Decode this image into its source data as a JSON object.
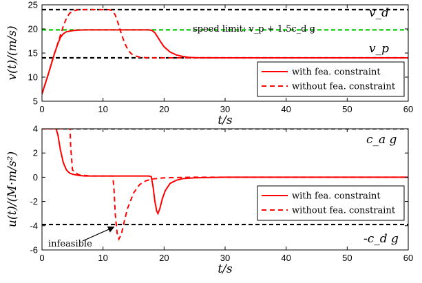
{
  "chart_data": [
    {
      "type": "line",
      "xlabel": "t/s",
      "ylabel": "v(t)/(m/s)",
      "xlim": [
        0,
        60
      ],
      "ylim": [
        5,
        25
      ],
      "xticks": [
        "0",
        "10",
        "20",
        "30",
        "40",
        "50",
        "60"
      ],
      "yticks": [
        "5",
        "10",
        "15",
        "20",
        "25"
      ],
      "grid": false,
      "legend_position": "right",
      "legend": [
        "with fea. constraint",
        "without fea. constraint"
      ],
      "reference_lines": [
        {
          "y": 24,
          "label": "v_d",
          "style": "dashed",
          "color": "#000000"
        },
        {
          "y": 19.8,
          "label": "speed limit: v_p + 1.5c_d g",
          "style": "dashed",
          "color": "#00cc00"
        },
        {
          "y": 14,
          "label": "v_p",
          "style": "dashed",
          "color": "#000000"
        }
      ],
      "series": [
        {
          "name": "with fea. constraint",
          "style": "solid",
          "color": "#ff0000",
          "x": [
            0,
            0.5,
            1,
            1.5,
            2,
            2.5,
            3,
            3.5,
            4,
            5,
            6,
            7,
            8,
            10,
            14,
            17.5,
            18,
            18.5,
            19,
            19.5,
            20,
            21,
            22,
            23,
            24,
            25,
            30,
            40,
            50,
            60
          ],
          "y": [
            6.5,
            8.5,
            10.5,
            12.6,
            14.7,
            16.6,
            18.2,
            19.0,
            19.4,
            19.65,
            19.75,
            19.8,
            19.8,
            19.8,
            19.8,
            19.8,
            19.7,
            19.2,
            18.2,
            17.2,
            16.3,
            15.2,
            14.6,
            14.3,
            14.1,
            14.05,
            14.0,
            14.0,
            14.0,
            14.0
          ]
        },
        {
          "name": "without fea. constraint",
          "style": "dashed",
          "color": "#ff0000",
          "x": [
            0,
            1,
            2,
            3,
            3.5,
            4,
            4.5,
            5,
            6,
            8,
            11,
            11.5,
            12,
            12.5,
            13,
            13.5,
            14,
            14.5,
            15,
            16,
            17,
            18,
            20,
            25,
            60
          ],
          "y": [
            6.5,
            10.5,
            14.7,
            18.6,
            20.6,
            22.2,
            23.2,
            23.7,
            24.0,
            24.0,
            24.0,
            23.8,
            22.9,
            21.1,
            19.0,
            17.2,
            15.9,
            15.0,
            14.5,
            14.15,
            14.05,
            14.0,
            14.0,
            14.0,
            14.0
          ]
        }
      ]
    },
    {
      "type": "line",
      "xlabel": "t/s",
      "ylabel": "u(t)/(M·m/s²)",
      "xlim": [
        0,
        60
      ],
      "ylim": [
        -6,
        4
      ],
      "xticks": [
        "0",
        "10",
        "20",
        "30",
        "40",
        "50",
        "60"
      ],
      "yticks": [
        "-6",
        "-4",
        "-2",
        "0",
        "2",
        "4"
      ],
      "grid": false,
      "legend_position": "right",
      "legend": [
        "with fea. constraint",
        "without fea. constraint"
      ],
      "reference_lines": [
        {
          "y": 4,
          "label": "c_a g",
          "style": "dashed",
          "color": "#000000"
        },
        {
          "y": -3.9,
          "label": "-c_d g",
          "style": "dashed",
          "color": "#000000"
        }
      ],
      "annotations": [
        {
          "text": "infeasible",
          "arrow_to": {
            "x": 12,
            "y": -4
          }
        }
      ],
      "series": [
        {
          "name": "with fea. constraint",
          "style": "solid",
          "color": "#ff0000",
          "x": [
            0,
            2.3,
            2.6,
            3,
            3.5,
            4,
            4.5,
            5,
            6,
            7,
            10,
            17.5,
            17.9,
            18.2,
            18.5,
            18.8,
            19,
            19.3,
            19.7,
            20.2,
            21,
            22,
            23,
            25,
            30,
            40,
            60
          ],
          "y": [
            4,
            4,
            3.5,
            2.3,
            1.2,
            0.6,
            0.35,
            0.25,
            0.15,
            0.1,
            0.1,
            0.1,
            0.05,
            -0.8,
            -2.0,
            -2.8,
            -3.0,
            -2.6,
            -1.8,
            -1.1,
            -0.5,
            -0.25,
            -0.12,
            -0.05,
            0,
            0,
            0
          ]
        },
        {
          "name": "without fea. constraint",
          "style": "dashed",
          "color": "#ff0000",
          "x": [
            0,
            4.6,
            4.7,
            5,
            6,
            8,
            11,
            11.6,
            11.8,
            12,
            12.3,
            12.6,
            13,
            13.5,
            14,
            15,
            16,
            17,
            18,
            20,
            25,
            30,
            40,
            60
          ],
          "y": [
            4,
            4,
            2.5,
            0.6,
            0.2,
            0.1,
            0.1,
            0.1,
            -1.0,
            -3.0,
            -4.6,
            -5.1,
            -4.7,
            -3.6,
            -2.6,
            -1.3,
            -0.6,
            -0.3,
            -0.15,
            -0.05,
            0,
            0,
            0,
            0
          ]
        }
      ]
    }
  ]
}
